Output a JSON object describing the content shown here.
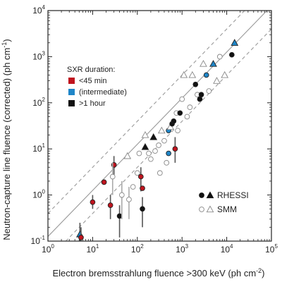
{
  "chart_data": {
    "type": "scatter",
    "xlabel": "Electron bremsstrahlung fluence >300 keV (ph cm",
    "xlabel_sup": "-2",
    "xlabel_close": ")",
    "ylabel": "Neutron-capture line fluence (corrected) (ph cm",
    "ylabel_sup": "-1",
    "ylabel_close": ")",
    "x_scale": "log",
    "y_scale": "log",
    "xlim": [
      1,
      100000
    ],
    "ylim": [
      0.1,
      10000
    ],
    "x_ticks": [
      {
        "value": 1,
        "base": "10",
        "exp": "0"
      },
      {
        "value": 10,
        "base": "10",
        "exp": "1"
      },
      {
        "value": 100,
        "base": "10",
        "exp": "2"
      },
      {
        "value": 1000,
        "base": "10",
        "exp": "3"
      },
      {
        "value": 10000,
        "base": "10",
        "exp": "4"
      },
      {
        "value": 100000,
        "base": "10",
        "exp": "5"
      }
    ],
    "y_ticks": [
      {
        "value": 0.1,
        "base": "10",
        "exp": "-1"
      },
      {
        "value": 1,
        "base": "10",
        "exp": "0"
      },
      {
        "value": 10,
        "base": "10",
        "exp": "1"
      },
      {
        "value": 100,
        "base": "10",
        "exp": "2"
      },
      {
        "value": 1000,
        "base": "10",
        "exp": "3"
      },
      {
        "value": 10000,
        "base": "10",
        "exp": "4"
      }
    ],
    "reference_lines": [
      {
        "style": "solid",
        "slope": 1,
        "intercept_log": -0.9
      },
      {
        "style": "dashed",
        "slope": 1,
        "intercept_log": -0.4
      },
      {
        "style": "dashed",
        "slope": 1,
        "intercept_log": -1.4
      }
    ],
    "legend_duration": {
      "title": "SXR duration:",
      "placement": "top-left",
      "items": [
        {
          "label": "<45 min",
          "color": "#c0141e"
        },
        {
          "label": "(intermediate)",
          "color": "#1f86c8"
        },
        {
          "label": ">1 hour",
          "color": "#111111"
        }
      ]
    },
    "legend_instrument": {
      "placement": "bottom-right",
      "items": [
        {
          "label": "RHESSI",
          "style": "filled"
        },
        {
          "label": "SMM",
          "style": "open"
        }
      ]
    },
    "colors": {
      "red": "#c0141e",
      "blue": "#1f86c8",
      "black": "#111111",
      "open": "#888888"
    },
    "points": [
      {
        "x": 5.2,
        "y": 0.14,
        "marker": "triangle",
        "fill": "blue",
        "err_low": 0.1,
        "err_high": 0.25
      },
      {
        "x": 5.5,
        "y": 0.12,
        "marker": "circle",
        "fill": "red",
        "err_low": 0.1,
        "err_high": 0.2
      },
      {
        "x": 10,
        "y": 0.7,
        "marker": "circle",
        "fill": "red",
        "err_low": 0.5,
        "err_high": 1.0
      },
      {
        "x": 18,
        "y": 1.9,
        "marker": "circle",
        "fill": "red"
      },
      {
        "x": 25,
        "y": 0.6,
        "marker": "circle",
        "fill": "red",
        "err_low": 0.3,
        "err_high": 1.0
      },
      {
        "x": 30,
        "y": 4.5,
        "marker": "circle",
        "fill": "red",
        "err_low": 2.5,
        "err_high": 7.0
      },
      {
        "x": 28,
        "y": 2.5,
        "marker": "circle",
        "fill": "open",
        "err_low": 1.0,
        "err_high": 5.0
      },
      {
        "x": 40,
        "y": 0.35,
        "marker": "circle",
        "fill": "black",
        "err_low": 0.12,
        "err_high": 0.6
      },
      {
        "x": 45,
        "y": 1.0,
        "marker": "circle",
        "fill": "open",
        "err_low": 0.3,
        "err_high": 2.0
      },
      {
        "x": 60,
        "y": 7.0,
        "marker": "triangle",
        "fill": "open"
      },
      {
        "x": 65,
        "y": 0.8,
        "marker": "circle",
        "fill": "open",
        "err_low": 0.3,
        "err_high": 1.5
      },
      {
        "x": 80,
        "y": 1.5,
        "marker": "circle",
        "fill": "open"
      },
      {
        "x": 100,
        "y": 3.0,
        "marker": "circle",
        "fill": "open"
      },
      {
        "x": 110,
        "y": 8.0,
        "marker": "circle",
        "fill": "open"
      },
      {
        "x": 120,
        "y": 2.5,
        "marker": "circle",
        "fill": "red",
        "err_low": 1.2,
        "err_high": 4.0
      },
      {
        "x": 130,
        "y": 1.4,
        "marker": "circle",
        "fill": "red"
      },
      {
        "x": 130,
        "y": 0.5,
        "marker": "circle",
        "fill": "black",
        "err_low": 0.2,
        "err_high": 0.9
      },
      {
        "x": 150,
        "y": 20,
        "marker": "triangle",
        "fill": "open"
      },
      {
        "x": 150,
        "y": 11,
        "marker": "triangle",
        "fill": "black"
      },
      {
        "x": 180,
        "y": 8.0,
        "marker": "circle",
        "fill": "open"
      },
      {
        "x": 200,
        "y": 6.0,
        "marker": "circle",
        "fill": "open"
      },
      {
        "x": 230,
        "y": 18,
        "marker": "triangle",
        "fill": "black"
      },
      {
        "x": 250,
        "y": 9.0,
        "marker": "circle",
        "fill": "open"
      },
      {
        "x": 300,
        "y": 12,
        "marker": "circle",
        "fill": "open"
      },
      {
        "x": 320,
        "y": 3.0,
        "marker": "circle",
        "fill": "open"
      },
      {
        "x": 350,
        "y": 25,
        "marker": "triangle",
        "fill": "open"
      },
      {
        "x": 400,
        "y": 15,
        "marker": "circle",
        "fill": "open"
      },
      {
        "x": 450,
        "y": 5.0,
        "marker": "circle",
        "fill": "open"
      },
      {
        "x": 500,
        "y": 25,
        "marker": "circle",
        "fill": "blue"
      },
      {
        "x": 500,
        "y": 8.0,
        "marker": "circle",
        "fill": "blue"
      },
      {
        "x": 550,
        "y": 30,
        "marker": "triangle",
        "fill": "open"
      },
      {
        "x": 600,
        "y": 35,
        "marker": "circle",
        "fill": "black"
      },
      {
        "x": 650,
        "y": 40,
        "marker": "circle",
        "fill": "black"
      },
      {
        "x": 700,
        "y": 10,
        "marker": "circle",
        "fill": "red",
        "err_low": 5.0,
        "err_high": 18.0
      },
      {
        "x": 750,
        "y": 60,
        "marker": "circle",
        "fill": "open"
      },
      {
        "x": 800,
        "y": 25,
        "marker": "circle",
        "fill": "open"
      },
      {
        "x": 900,
        "y": 60,
        "marker": "circle",
        "fill": "black"
      },
      {
        "x": 1000,
        "y": 120,
        "marker": "circle",
        "fill": "open"
      },
      {
        "x": 1100,
        "y": 400,
        "marker": "triangle",
        "fill": "open"
      },
      {
        "x": 1300,
        "y": 50,
        "marker": "circle",
        "fill": "open"
      },
      {
        "x": 1500,
        "y": 80,
        "marker": "circle",
        "fill": "open"
      },
      {
        "x": 1700,
        "y": 400,
        "marker": "triangle",
        "fill": "open"
      },
      {
        "x": 2000,
        "y": 250,
        "marker": "circle",
        "fill": "black"
      },
      {
        "x": 2200,
        "y": 150,
        "marker": "circle",
        "fill": "open"
      },
      {
        "x": 2500,
        "y": 120,
        "marker": "circle",
        "fill": "black"
      },
      {
        "x": 2700,
        "y": 150,
        "marker": "circle",
        "fill": "black"
      },
      {
        "x": 3000,
        "y": 700,
        "marker": "triangle",
        "fill": "open"
      },
      {
        "x": 3500,
        "y": 400,
        "marker": "circle",
        "fill": "blue"
      },
      {
        "x": 4000,
        "y": 180,
        "marker": "circle",
        "fill": "open"
      },
      {
        "x": 5000,
        "y": 700,
        "marker": "triangle",
        "fill": "blue"
      },
      {
        "x": 6000,
        "y": 300,
        "marker": "triangle",
        "fill": "open"
      },
      {
        "x": 7000,
        "y": 1000,
        "marker": "circle",
        "fill": "open"
      },
      {
        "x": 9000,
        "y": 400,
        "marker": "triangle",
        "fill": "open"
      },
      {
        "x": 13000,
        "y": 1100,
        "marker": "circle",
        "fill": "black"
      },
      {
        "x": 15000,
        "y": 2000,
        "marker": "triangle",
        "fill": "blue"
      }
    ]
  }
}
